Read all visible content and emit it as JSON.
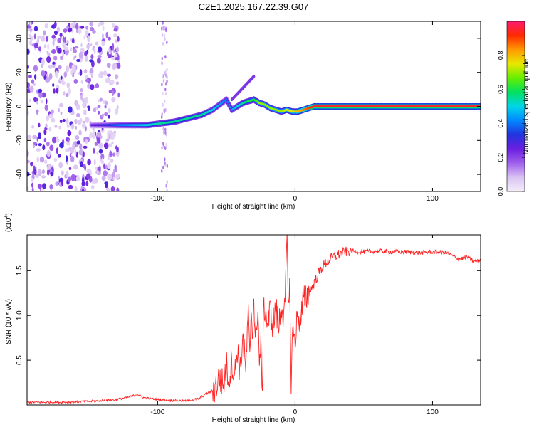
{
  "title": "C2E1.2025.167.22.39.G07",
  "chart_data": [
    {
      "type": "heatmap",
      "title": "C2E1.2025.167.22.39.G07",
      "xlabel": "Height of straight line (km)",
      "ylabel": "Frequency (Hz)",
      "xlim": [
        -195,
        135
      ],
      "ylim": [
        -50,
        50
      ],
      "x_ticks": [
        -100,
        0,
        100
      ],
      "x_tick_labels": [
        "-100",
        "0",
        "100"
      ],
      "y_ticks": [
        -40,
        -20,
        0,
        20,
        40
      ],
      "y_tick_labels": [
        "-40",
        "-20",
        "0",
        "20",
        "40"
      ],
      "colorbar": {
        "label": "Normalized spectral amplitude",
        "range": [
          0,
          1
        ],
        "ticks": [
          0.0,
          0.2,
          0.4,
          0.6,
          0.8
        ],
        "tick_labels": [
          "0.0",
          "0.2",
          "0.4",
          "0.6",
          "0.8"
        ],
        "colors": [
          "#f4eefb",
          "#d9c2f2",
          "#a060ec",
          "#6a1fe0",
          "#2233dd",
          "#0088ff",
          "#00d6e8",
          "#00e060",
          "#66ee00",
          "#e8e800",
          "#ff9900",
          "#ff2a00",
          "#ff1a6e"
        ]
      },
      "ridge": {
        "x": [
          -148,
          -138,
          -128,
          -118,
          -108,
          -98,
          -88,
          -78,
          -68,
          -60,
          -55,
          -50,
          -46,
          -42,
          -38,
          -34,
          -30,
          -26,
          -22,
          -18,
          -14,
          -10,
          -6,
          -2,
          2,
          6,
          10,
          14,
          20,
          30,
          60,
          100,
          135
        ],
        "y": [
          -11,
          -11,
          -11,
          -11,
          -11,
          -10,
          -9,
          -7,
          -5,
          -2,
          1,
          4,
          -2,
          0,
          2,
          3,
          4,
          2,
          1,
          -1,
          -2,
          -3,
          -2,
          -3,
          -3,
          -2,
          -1,
          0,
          0,
          0,
          0,
          0,
          0
        ],
        "amplitude": [
          0.25,
          0.3,
          0.4,
          0.45,
          0.5,
          0.55,
          0.55,
          0.55,
          0.55,
          0.5,
          0.45,
          0.4,
          0.45,
          0.5,
          0.55,
          0.6,
          0.6,
          0.7,
          0.7,
          0.7,
          0.7,
          0.7,
          0.75,
          0.75,
          0.8,
          0.85,
          0.9,
          0.95,
          0.95,
          0.95,
          0.95,
          0.95,
          0.95
        ]
      },
      "noise_region_x": [
        -195,
        -128
      ],
      "noise_amplitude_range": [
        0.05,
        0.3
      ]
    },
    {
      "type": "line",
      "xlabel": "Height of straight line (km)",
      "ylabel": "SNR (10 * v/v)",
      "y_scale_label": "(x10",
      "y_scale_exponent": "4",
      "xlim": [
        -195,
        135
      ],
      "ylim": [
        0,
        19000
      ],
      "x_ticks": [
        -100,
        0,
        100
      ],
      "x_tick_labels": [
        "-100",
        "0",
        "100"
      ],
      "y_ticks": [
        5000,
        10000,
        15000
      ],
      "y_tick_labels": [
        "0.5",
        "1.0",
        "1.5"
      ],
      "series": [
        {
          "color": "#ff2020",
          "x": [
            -195,
            -170,
            -150,
            -130,
            -120,
            -115,
            -110,
            -100,
            -90,
            -80,
            -70,
            -65,
            -60,
            -58,
            -55,
            -52,
            -50,
            -48,
            -46,
            -44,
            -42,
            -40,
            -38,
            -36,
            -34,
            -33,
            -32,
            -31,
            -30,
            -29,
            -28,
            -27,
            -26,
            -25,
            -24,
            -23,
            -22,
            -20,
            -18,
            -16,
            -14,
            -12,
            -10,
            -8,
            -7,
            -6,
            -5,
            -4,
            -3,
            -2,
            0,
            2,
            4,
            6,
            8,
            10,
            12,
            15,
            18,
            22,
            26,
            30,
            35,
            40,
            50,
            60,
            70,
            80,
            90,
            100,
            110,
            115,
            120,
            125,
            130,
            135
          ],
          "y": [
            300,
            300,
            400,
            600,
            900,
            1200,
            800,
            600,
            500,
            450,
            700,
            1200,
            1600,
            2000,
            3000,
            2200,
            4400,
            2800,
            5000,
            3000,
            6500,
            3500,
            7800,
            3600,
            10000,
            5000,
            11000,
            8000,
            12500,
            6000,
            9500,
            11000,
            4000,
            7200,
            500,
            9800,
            11000,
            9000,
            10500,
            9000,
            11000,
            8500,
            11500,
            9500,
            12000,
            19000,
            11500,
            14000,
            2000,
            8000,
            7500,
            10000,
            9500,
            11500,
            12000,
            12500,
            13000,
            14000,
            15000,
            15800,
            16300,
            16700,
            17000,
            17200,
            17100,
            17200,
            17100,
            17100,
            17000,
            17100,
            17000,
            16600,
            16300,
            16500,
            16000,
            16200
          ]
        }
      ]
    }
  ]
}
